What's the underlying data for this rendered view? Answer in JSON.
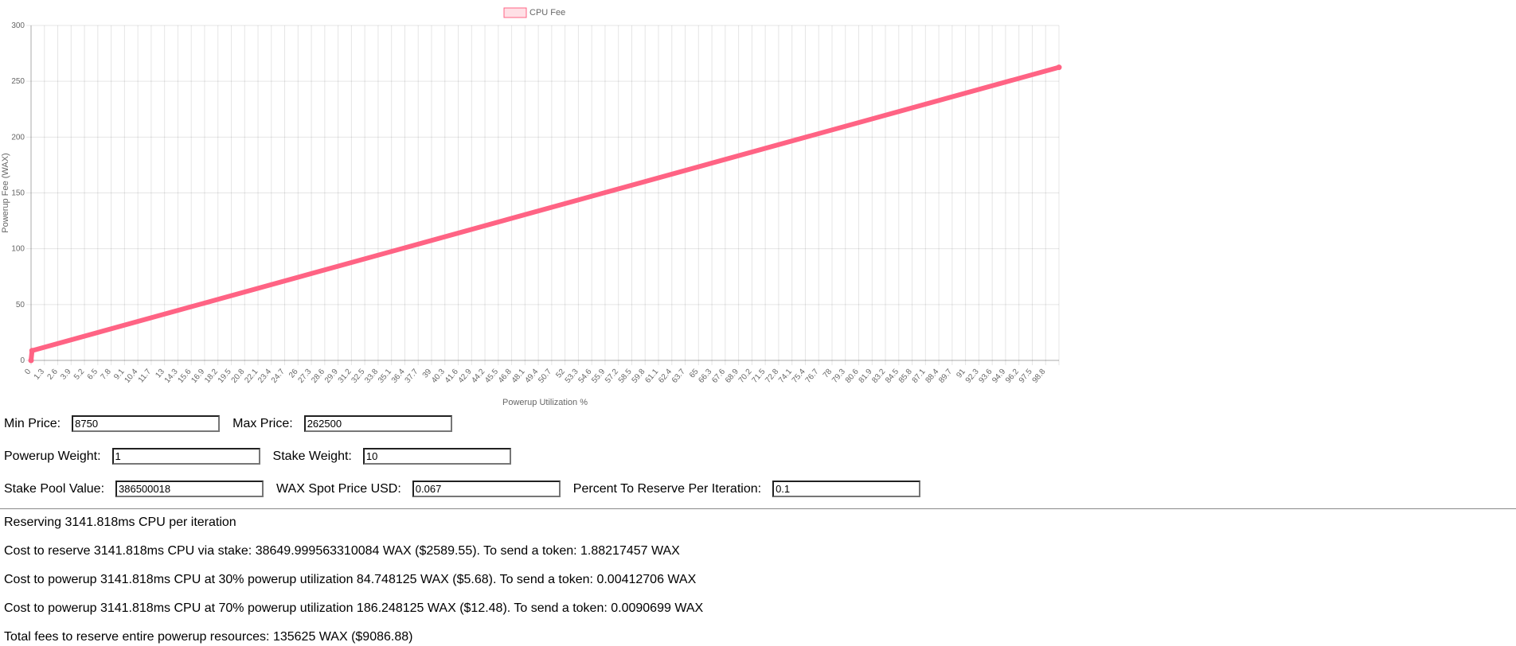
{
  "chart_data": {
    "type": "line",
    "legend": {
      "label": "CPU Fee",
      "placement": "top"
    },
    "xlabel": "Powerup Utilization %",
    "ylabel": "Powerup Fee (WAX)",
    "ylim": [
      0,
      300
    ],
    "yticks": [
      0,
      50,
      100,
      150,
      200,
      250,
      300
    ],
    "grid": true,
    "x_tick_labels": [
      "0",
      "1.3",
      "2.6",
      "3.9",
      "5.2",
      "6.5",
      "7.8",
      "9.1",
      "10.4",
      "11.7",
      "13",
      "14.3",
      "15.6",
      "16.9",
      "18.2",
      "19.5",
      "20.8",
      "22.1",
      "23.4",
      "24.7",
      "26",
      "27.3",
      "28.6",
      "29.9",
      "31.2",
      "32.5",
      "33.8",
      "35.1",
      "36.4",
      "37.7",
      "39",
      "40.3",
      "41.6",
      "42.9",
      "44.2",
      "45.5",
      "46.8",
      "48.1",
      "49.4",
      "50.7",
      "52",
      "53.3",
      "54.6",
      "55.9",
      "57.2",
      "58.5",
      "59.8",
      "61.1",
      "62.4",
      "63.7",
      "65",
      "66.3",
      "67.6",
      "68.9",
      "70.2",
      "71.5",
      "72.8",
      "74.1",
      "75.4",
      "76.7",
      "78",
      "79.3",
      "80.6",
      "81.9",
      "83.2",
      "84.5",
      "85.8",
      "87.1",
      "88.4",
      "89.7",
      "91",
      "92.3",
      "93.6",
      "94.9",
      "96.2",
      "97.5",
      "98.8"
    ],
    "xlim": [
      0,
      100
    ],
    "series": [
      {
        "name": "CPU Fee",
        "x": [
          0,
          0.1,
          100
        ],
        "y": [
          0,
          8.75,
          262.5
        ]
      }
    ],
    "colors": {
      "line": "#ff6384",
      "fill": "rgba(255,99,132,0.2)"
    }
  },
  "form": {
    "min_price_label": "Min Price:",
    "min_price_value": "8750",
    "max_price_label": "Max Price:",
    "max_price_value": "262500",
    "powerup_weight_label": "Powerup Weight:",
    "powerup_weight_value": "1",
    "stake_weight_label": "Stake Weight:",
    "stake_weight_value": "10",
    "stake_pool_label": "Stake Pool Value:",
    "stake_pool_value": "386500018",
    "wax_price_label": "WAX Spot Price USD:",
    "wax_price_value": "0.067",
    "percent_reserve_label": "Percent To Reserve Per Iteration:",
    "percent_reserve_value": "0.1"
  },
  "results": {
    "reserving": "Reserving 3141.818ms CPU per iteration",
    "stake_cost": "Cost to reserve 3141.818ms CPU via stake: 38649.999563310084 WAX ($2589.55). To send a token: 1.88217457 WAX",
    "powerup_30": "Cost to powerup 3141.818ms CPU at 30% powerup utilization 84.748125 WAX ($5.68). To send a token: 0.00412706 WAX",
    "powerup_70": "Cost to powerup 3141.818ms CPU at 70% powerup utilization 186.248125 WAX ($12.48). To send a token: 0.0090699 WAX",
    "total_fees": "Total fees to reserve entire powerup resources: 135625 WAX ($9086.88)"
  }
}
